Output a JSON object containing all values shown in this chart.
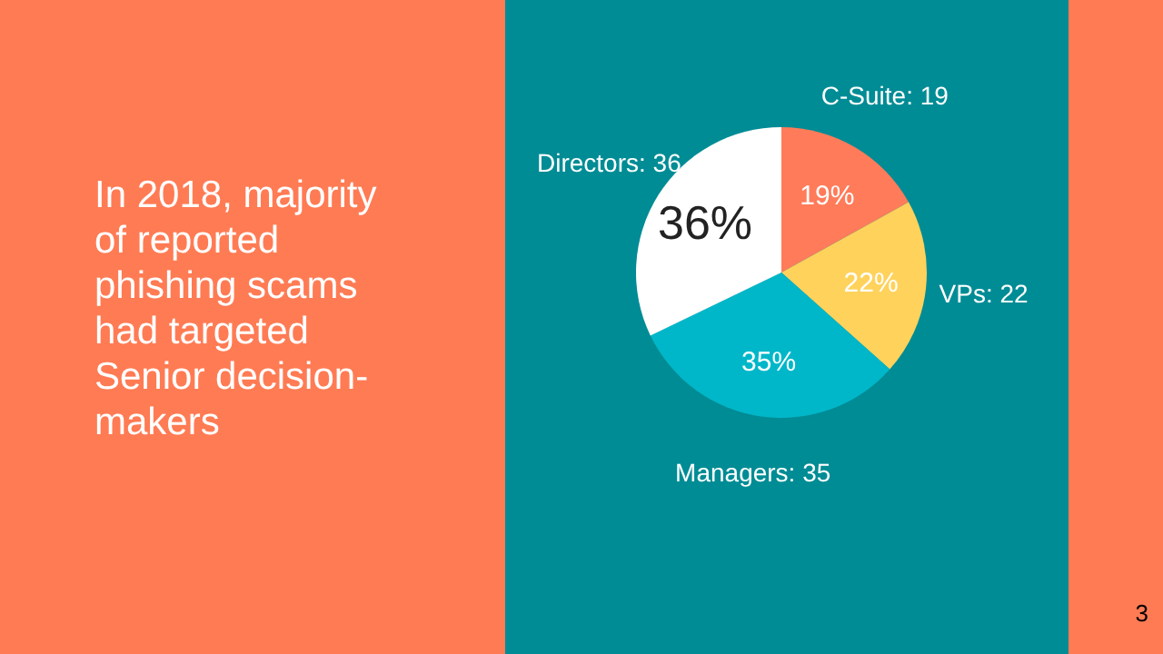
{
  "chart_data": {
    "type": "pie",
    "title": "In 2018, majority\nof reported\nphishing scams\nhad targeted\nSenior decision-\nmakers",
    "categories": [
      "C-Suite: 19",
      "VPs: 22",
      "Managers: 35",
      "Directors: 36"
    ],
    "values": [
      19,
      22,
      35,
      36
    ],
    "value_labels": [
      "19%",
      "22%",
      "35%",
      "36%"
    ],
    "colors": [
      "#ff7b5a",
      "#ffd25c",
      "#00b7c9",
      "#ffffff"
    ],
    "annotations": [
      "3"
    ]
  }
}
